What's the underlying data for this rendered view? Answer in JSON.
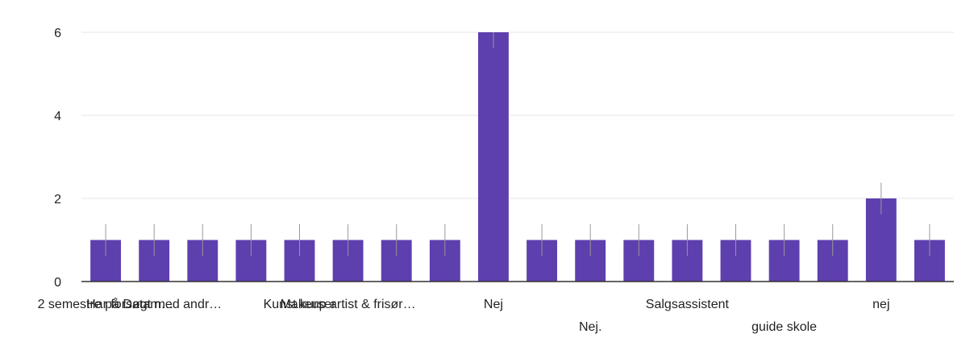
{
  "chart_data": {
    "type": "bar",
    "title": "",
    "xlabel": "",
    "ylabel": "",
    "ylim": [
      0,
      6
    ],
    "yticks": [
      0,
      2,
      4,
      6
    ],
    "grid": true,
    "legend": "none",
    "categories": [
      "2 semestre på Datam…",
      "Har forsøgt med andr…",
      "",
      "",
      "Kunst kurser",
      "Makeup artist & frisør…",
      "",
      "",
      "Nej",
      "",
      "Nej.",
      "",
      "Salgsassistent",
      "",
      "guide skole",
      "",
      "nej",
      ""
    ],
    "values": [
      1,
      1,
      1,
      1,
      1,
      1,
      1,
      1,
      6,
      1,
      1,
      1,
      1,
      1,
      1,
      1,
      2,
      1
    ],
    "colors": {
      "bar": "#5e3fae",
      "grid": "#e6e6e6",
      "axis": "#333333",
      "whisker": "#999999"
    }
  }
}
